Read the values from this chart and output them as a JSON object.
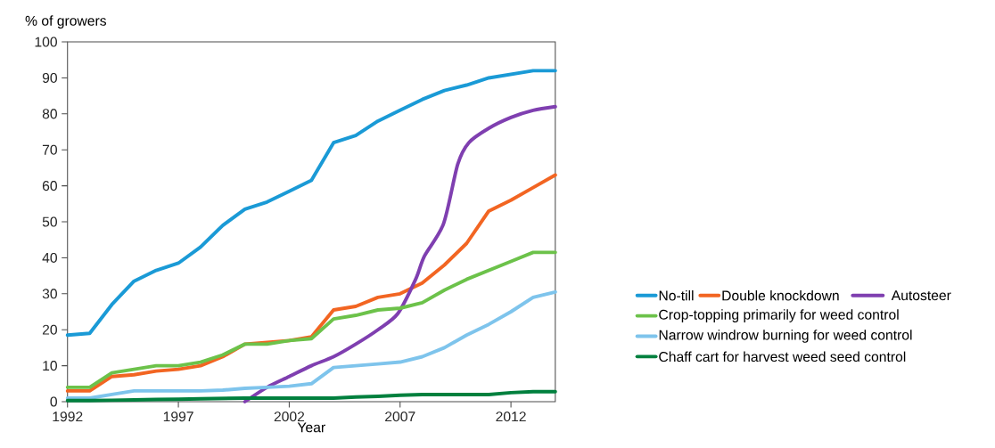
{
  "chart_data": {
    "type": "line",
    "xlabel": "Year",
    "ylabel": "% of growers",
    "xlim": [
      1992,
      2014
    ],
    "ylim": [
      0,
      100
    ],
    "xticks": [
      1992,
      1997,
      2002,
      2007,
      2012
    ],
    "yticks": [
      0,
      10,
      20,
      30,
      40,
      50,
      60,
      70,
      80,
      90,
      100
    ],
    "grid": false,
    "legend": "right",
    "marker": "none",
    "line_style": "solid",
    "x": [
      1992,
      1993,
      1994,
      1995,
      1996,
      1997,
      1998,
      1999,
      2000,
      2001,
      2002,
      2003,
      2004,
      2005,
      2006,
      2007,
      2008,
      2009,
      2010,
      2011,
      2012,
      2013,
      2014
    ],
    "series": [
      {
        "name": "No-till",
        "color": "#1a9ad6",
        "values": [
          18.5,
          19,
          27,
          33.5,
          36.5,
          38.5,
          43,
          49,
          53.5,
          55.5,
          58.5,
          61.5,
          72,
          74,
          78,
          81,
          84,
          86.5,
          88,
          90,
          91,
          92,
          92
        ]
      },
      {
        "name": "Double knockdown",
        "color": "#f26522",
        "values": [
          3,
          3,
          7,
          7.5,
          8.5,
          9,
          10,
          12.5,
          16,
          16.5,
          17,
          18,
          25.5,
          26.5,
          29,
          30,
          33,
          38,
          44,
          53,
          56,
          59.5,
          63
        ]
      },
      {
        "name": "Autosteer",
        "color": "#7f3fb0",
        "x": [
          2000,
          2001,
          2002,
          2003,
          2004,
          2005,
          2006,
          2006.9,
          2007.7,
          2008.1,
          2008.96,
          2009.6,
          2010.1,
          2011,
          2012,
          2013,
          2014
        ],
        "values": [
          0,
          4,
          7,
          10,
          12.5,
          16,
          20,
          24.5,
          34,
          40.5,
          49.5,
          66,
          72,
          76,
          79,
          81,
          82
        ]
      },
      {
        "name": "Crop-topping primarily for weed control",
        "color": "#6cc24a",
        "values": [
          4,
          4,
          8,
          9,
          10,
          10,
          11,
          13,
          16,
          16,
          17,
          17.5,
          23,
          24,
          25.5,
          26,
          27.5,
          31,
          34,
          36.5,
          39,
          41.5,
          41.5
        ]
      },
      {
        "name": "Narrow windrow burning for weed control",
        "color": "#7ec4ec",
        "values": [
          1,
          1,
          2,
          3,
          3,
          3,
          3,
          3.2,
          3.7,
          4,
          4.3,
          5,
          9.5,
          10,
          10.5,
          11,
          12.5,
          15,
          18.5,
          21.5,
          25,
          29,
          30.5
        ]
      },
      {
        "name": "Chaff cart for harvest weed seed control",
        "color": "#00803e",
        "values": [
          0.3,
          0.3,
          0.4,
          0.5,
          0.6,
          0.7,
          0.8,
          0.9,
          1,
          1,
          1,
          1,
          1,
          1.3,
          1.5,
          1.8,
          2,
          2,
          2,
          2,
          2.5,
          2.8,
          2.8
        ]
      }
    ]
  }
}
